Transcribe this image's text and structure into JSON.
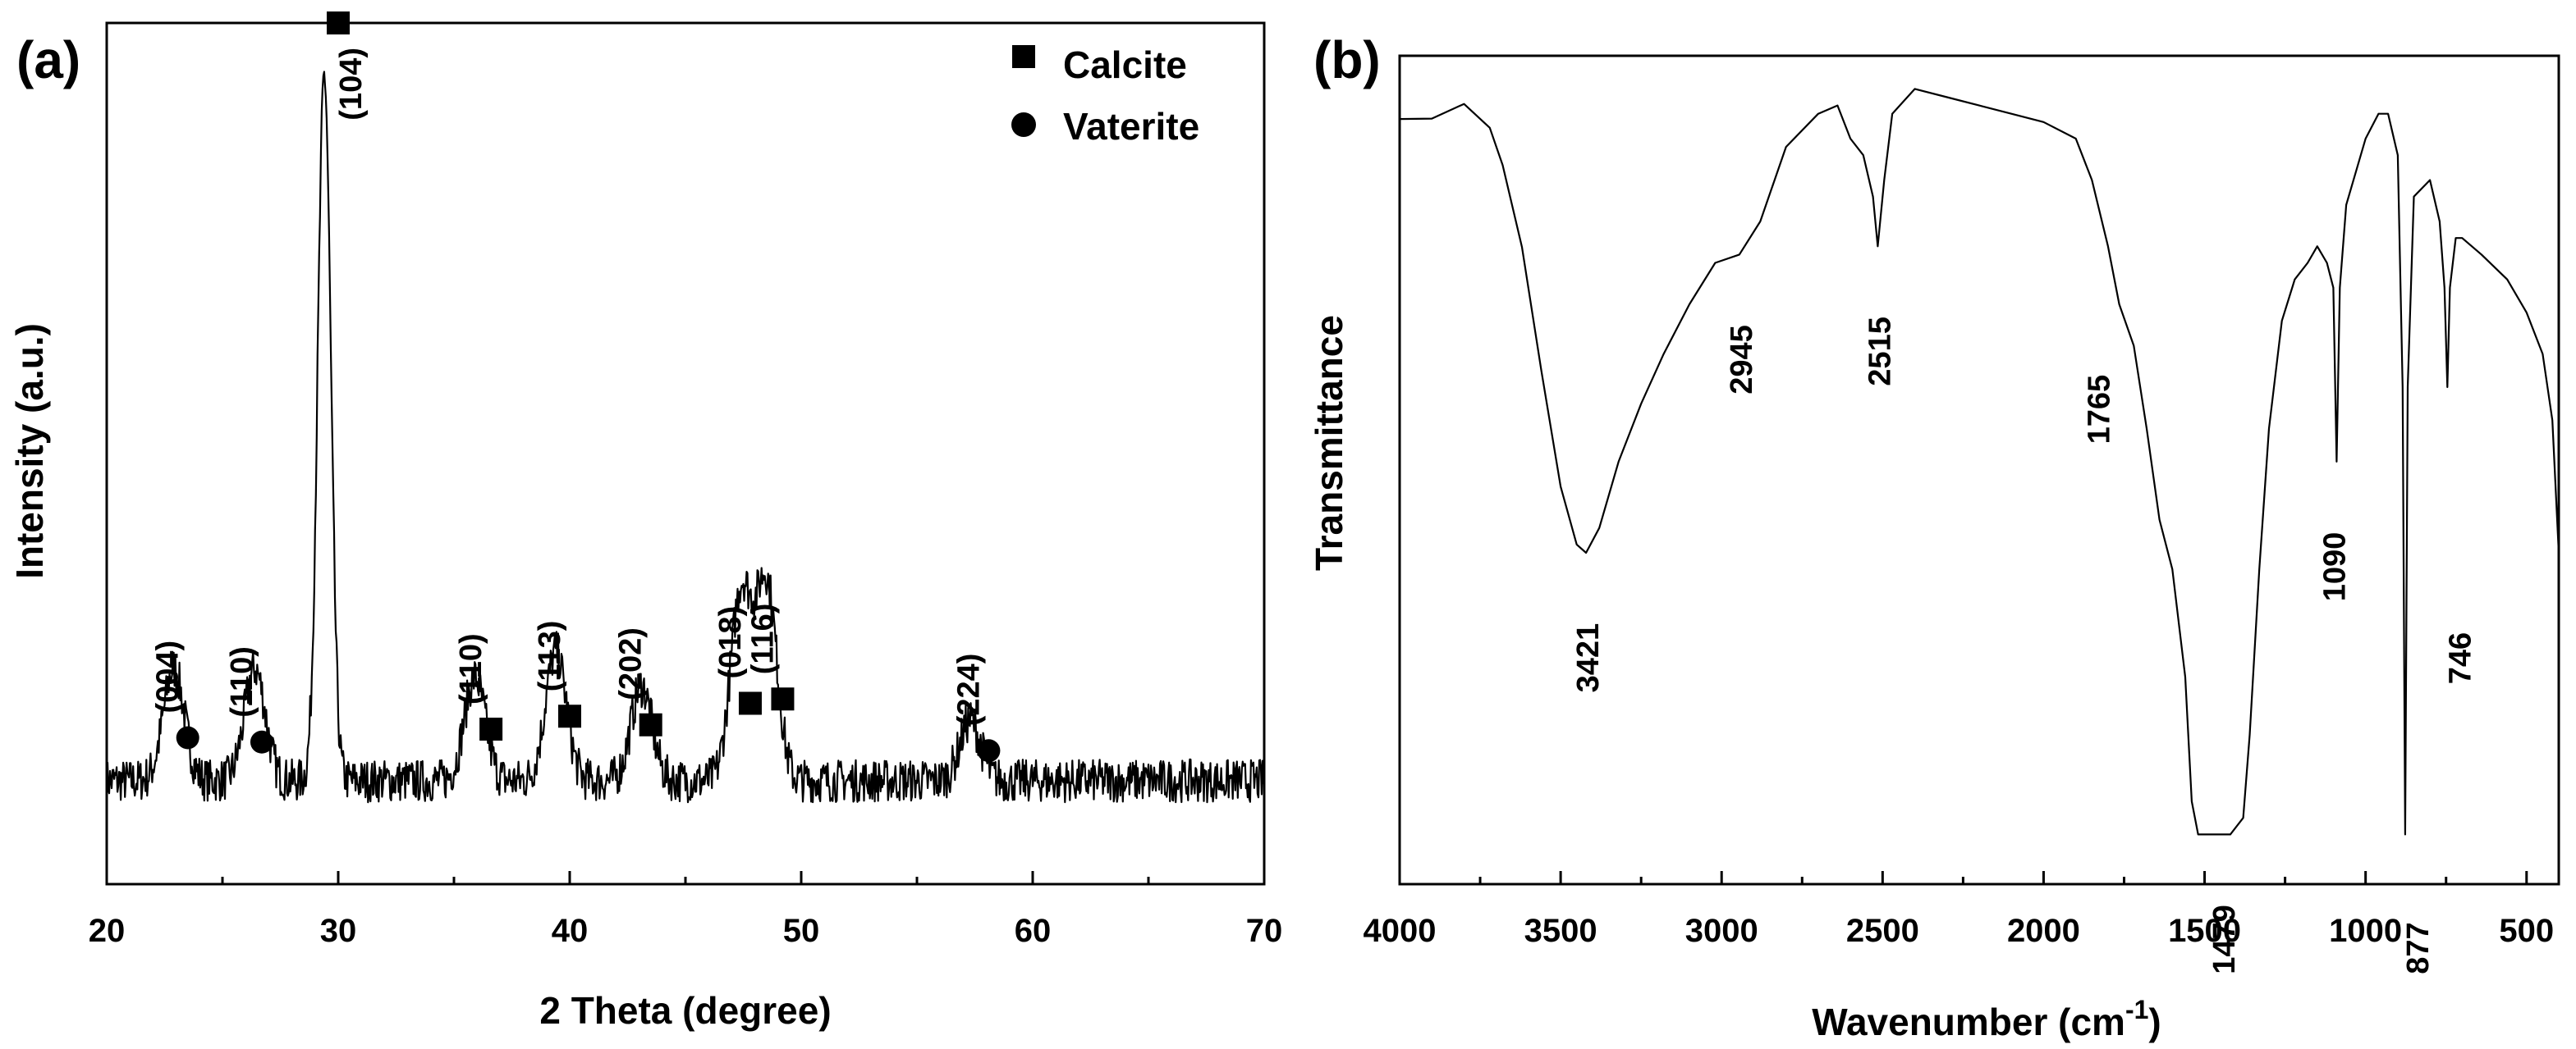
{
  "colors": {
    "line": "#000000",
    "background": "#ffffff"
  },
  "chart_data": [
    {
      "type": "line",
      "panel_label": "(a)",
      "title": "",
      "xlabel": "2 Theta (degree)",
      "ylabel": "Intensity (a.u.)",
      "xlim": [
        20,
        70
      ],
      "xticks": [
        20,
        30,
        40,
        50,
        60,
        70
      ],
      "yticks_shown": false,
      "grid": false,
      "legend_position": "top-right",
      "legend": [
        {
          "label": "Calcite",
          "marker": "square"
        },
        {
          "label": "Vaterite",
          "marker": "circle"
        }
      ],
      "series": [
        {
          "peaks": [
            {
              "x": 22.9,
              "y": 0.25
            },
            {
              "x": 26.4,
              "y": 0.25
            },
            {
              "x": 29.4,
              "y": 0.94
            },
            {
              "x": 35.9,
              "y": 0.24
            },
            {
              "x": 39.4,
              "y": 0.27
            },
            {
              "x": 43.1,
              "y": 0.23
            },
            {
              "x": 47.4,
              "y": 0.34
            },
            {
              "x": 48.5,
              "y": 0.35
            },
            {
              "x": 57.3,
              "y": 0.19
            }
          ],
          "baseline": 0.12
        }
      ],
      "annotations": [
        {
          "text": "(004)",
          "x": 23.5,
          "phase": "Vaterite",
          "marker": "circle"
        },
        {
          "text": "(110)",
          "x": 26.7,
          "phase": "Vaterite",
          "marker": "circle"
        },
        {
          "text": "(104)",
          "x": 30.0,
          "phase": "Calcite",
          "marker": "square"
        },
        {
          "text": "(110)",
          "x": 36.6,
          "phase": "Calcite",
          "marker": "square"
        },
        {
          "text": "(113)",
          "x": 40.0,
          "phase": "Calcite",
          "marker": "square"
        },
        {
          "text": "(202)",
          "x": 43.5,
          "phase": "Calcite",
          "marker": "square"
        },
        {
          "text": "(018)",
          "x": 47.8,
          "phase": "Calcite",
          "marker": "square"
        },
        {
          "text": "(116)",
          "x": 49.2,
          "phase": "Calcite",
          "marker": "square"
        },
        {
          "text": "(224)",
          "x": 58.1,
          "phase": "Vaterite",
          "marker": "circle"
        }
      ]
    },
    {
      "type": "line",
      "panel_label": "(b)",
      "title": "",
      "xlabel": "Wavenumber (cm",
      "xlabel_sup": "-1",
      "xlabel_close": ")",
      "ylabel": "Transmittance",
      "xlim": [
        4000,
        400
      ],
      "xticks": [
        4000,
        3500,
        3000,
        2500,
        2000,
        1500,
        1000,
        500
      ],
      "yticks_shown": false,
      "grid": false,
      "series": [
        {
          "points": [
            [
              4000,
              0.92
            ],
            [
              3900,
              0.93
            ],
            [
              3800,
              0.93
            ],
            [
              3720,
              0.92
            ],
            [
              3680,
              0.88
            ],
            [
              3620,
              0.78
            ],
            [
              3560,
              0.62
            ],
            [
              3500,
              0.48
            ],
            [
              3450,
              0.41
            ],
            [
              3421,
              0.4
            ],
            [
              3380,
              0.43
            ],
            [
              3320,
              0.51
            ],
            [
              3250,
              0.58
            ],
            [
              3180,
              0.64
            ],
            [
              3100,
              0.7
            ],
            [
              3020,
              0.75
            ],
            [
              2945,
              0.76
            ],
            [
              2880,
              0.8
            ],
            [
              2800,
              0.89
            ],
            [
              2700,
              0.93
            ],
            [
              2640,
              0.94
            ],
            [
              2600,
              0.9
            ],
            [
              2560,
              0.88
            ],
            [
              2530,
              0.83
            ],
            [
              2515,
              0.77
            ],
            [
              2495,
              0.85
            ],
            [
              2470,
              0.93
            ],
            [
              2400,
              0.96
            ],
            [
              2300,
              0.95
            ],
            [
              2200,
              0.94
            ],
            [
              2100,
              0.93
            ],
            [
              2000,
              0.92
            ],
            [
              1900,
              0.9
            ],
            [
              1850,
              0.85
            ],
            [
              1800,
              0.77
            ],
            [
              1765,
              0.7
            ],
            [
              1720,
              0.65
            ],
            [
              1680,
              0.55
            ],
            [
              1640,
              0.44
            ],
            [
              1600,
              0.38
            ],
            [
              1560,
              0.25
            ],
            [
              1540,
              0.1
            ],
            [
              1520,
              0.06
            ],
            [
              1479,
              0.06
            ],
            [
              1420,
              0.06
            ],
            [
              1380,
              0.08
            ],
            [
              1360,
              0.18
            ],
            [
              1330,
              0.38
            ],
            [
              1300,
              0.55
            ],
            [
              1260,
              0.68
            ],
            [
              1220,
              0.73
            ],
            [
              1180,
              0.75
            ],
            [
              1150,
              0.77
            ],
            [
              1120,
              0.75
            ],
            [
              1100,
              0.72
            ],
            [
              1090,
              0.51
            ],
            [
              1080,
              0.72
            ],
            [
              1060,
              0.82
            ],
            [
              1000,
              0.9
            ],
            [
              960,
              0.93
            ],
            [
              930,
              0.93
            ],
            [
              900,
              0.88
            ],
            [
              885,
              0.6
            ],
            [
              877,
              0.06
            ],
            [
              869,
              0.6
            ],
            [
              850,
              0.83
            ],
            [
              800,
              0.85
            ],
            [
              770,
              0.8
            ],
            [
              755,
              0.72
            ],
            [
              746,
              0.6
            ],
            [
              738,
              0.72
            ],
            [
              720,
              0.78
            ],
            [
              700,
              0.78
            ],
            [
              640,
              0.76
            ],
            [
              560,
              0.73
            ],
            [
              500,
              0.69
            ],
            [
              450,
              0.64
            ],
            [
              420,
              0.56
            ],
            [
              400,
              0.4
            ]
          ]
        }
      ],
      "annotations": [
        {
          "text": "3421",
          "x": 3421
        },
        {
          "text": "2945",
          "x": 2945
        },
        {
          "text": "2515",
          "x": 2515
        },
        {
          "text": "1765",
          "x": 1765
        },
        {
          "text": "1479",
          "x": 1479
        },
        {
          "text": "1090",
          "x": 1090
        },
        {
          "text": "877",
          "x": 877
        },
        {
          "text": "746",
          "x": 746
        }
      ]
    }
  ]
}
